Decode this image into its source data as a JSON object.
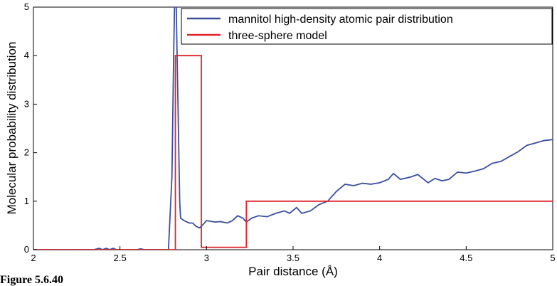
{
  "chart_data": {
    "type": "line",
    "xlabel": "Pair distance (Å)",
    "ylabel": "Molecular probability distribution",
    "caption": "Figure 5.6.40",
    "xlim": [
      2,
      5
    ],
    "ylim": [
      0,
      5
    ],
    "xticks": [
      2,
      2.5,
      3,
      3.5,
      4,
      4.5,
      5
    ],
    "yticks": [
      0,
      1,
      2,
      3,
      4,
      5
    ],
    "legend": "upper right",
    "series": [
      {
        "name": "mannitol high-density atomic pair distribution",
        "color": "#3a4fa0",
        "x": [
          2,
          2.35,
          2.38,
          2.4,
          2.42,
          2.44,
          2.46,
          2.48,
          2.6,
          2.62,
          2.64,
          2.78,
          2.8,
          2.81,
          2.82,
          2.835,
          2.845,
          2.85,
          2.87,
          2.9,
          2.92,
          2.94,
          2.96,
          2.98,
          3.0,
          3.05,
          3.08,
          3.12,
          3.15,
          3.18,
          3.21,
          3.23,
          3.26,
          3.3,
          3.35,
          3.4,
          3.45,
          3.48,
          3.52,
          3.55,
          3.6,
          3.65,
          3.7,
          3.75,
          3.8,
          3.85,
          3.9,
          3.95,
          4.0,
          4.05,
          4.08,
          4.12,
          4.18,
          4.22,
          4.28,
          4.32,
          4.36,
          4.4,
          4.45,
          4.5,
          4.55,
          4.6,
          4.65,
          4.7,
          4.75,
          4.8,
          4.85,
          4.9,
          4.95,
          5
        ],
        "values": [
          0,
          0,
          0.03,
          0,
          0.03,
          0,
          0.03,
          0,
          0,
          0.02,
          0,
          0,
          1.5,
          4,
          6,
          3,
          1,
          0.65,
          0.6,
          0.55,
          0.55,
          0.48,
          0.45,
          0.52,
          0.6,
          0.57,
          0.58,
          0.55,
          0.6,
          0.7,
          0.65,
          0.57,
          0.65,
          0.7,
          0.68,
          0.75,
          0.8,
          0.75,
          0.87,
          0.75,
          0.8,
          0.93,
          1.0,
          1.2,
          1.35,
          1.32,
          1.37,
          1.35,
          1.38,
          1.45,
          1.57,
          1.45,
          1.5,
          1.55,
          1.38,
          1.47,
          1.42,
          1.45,
          1.6,
          1.58,
          1.62,
          1.67,
          1.78,
          1.82,
          1.92,
          2.02,
          2.15,
          2.2,
          2.25,
          2.27
        ]
      },
      {
        "name": "three-sphere model",
        "color": "#e0242a",
        "x": [
          2,
          2.82,
          2.82,
          2.97,
          2.97,
          3.23,
          3.23,
          5
        ],
        "values": [
          0,
          0,
          4,
          4,
          0.05,
          0.05,
          1,
          1
        ]
      }
    ]
  }
}
